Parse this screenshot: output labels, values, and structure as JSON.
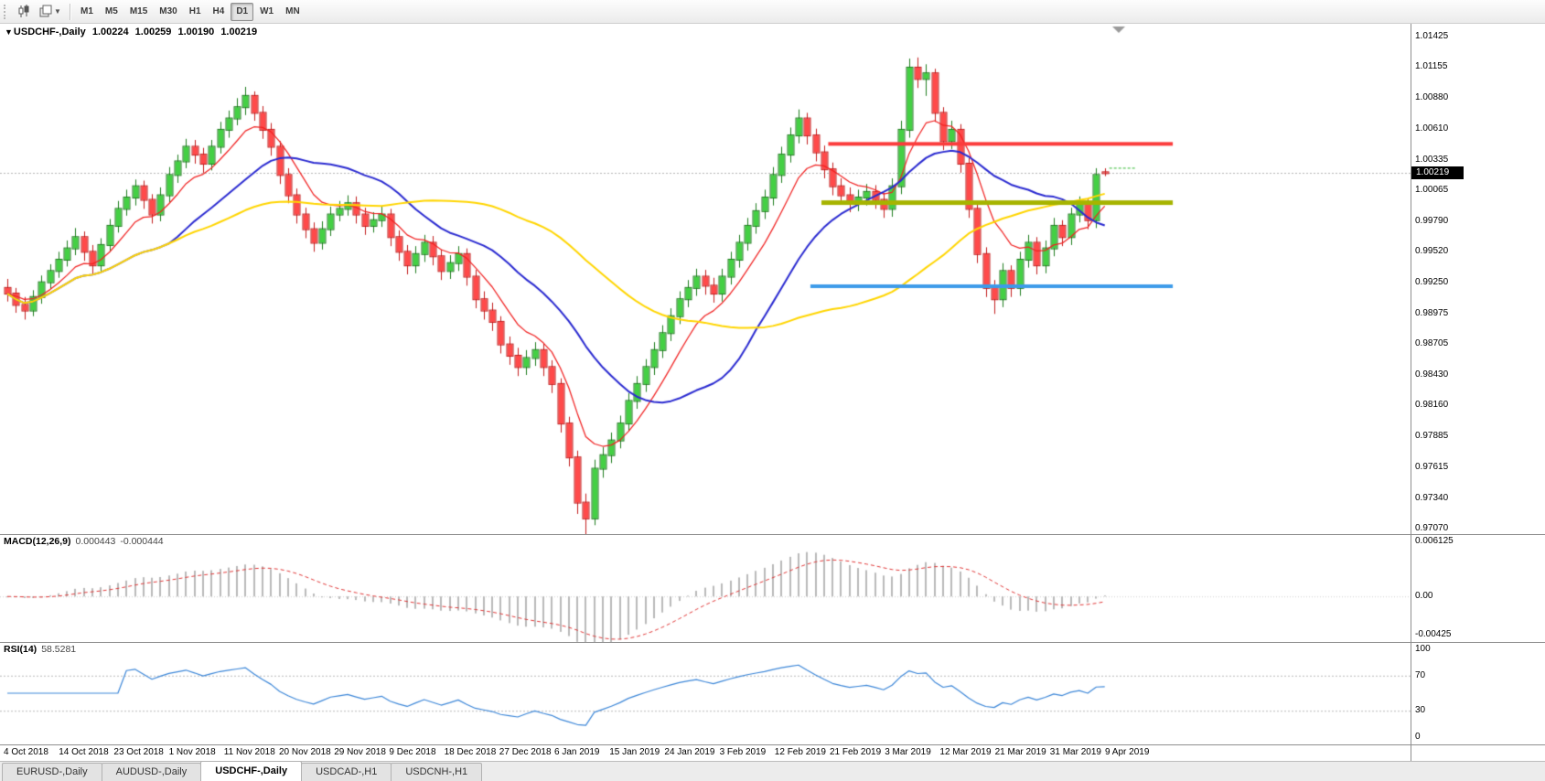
{
  "toolbar": {
    "icons": [
      "candlestick-chart-icon",
      "templates-icon"
    ],
    "timeframes": [
      "M1",
      "M5",
      "M15",
      "M30",
      "H1",
      "H4",
      "D1",
      "W1",
      "MN"
    ],
    "active_timeframe": "D1"
  },
  "chart": {
    "title": {
      "symbol": "USDCHF-,Daily",
      "open": "1.00224",
      "high": "1.00259",
      "low": "1.00190",
      "close": "1.00219"
    },
    "price_axis": {
      "labels": [
        "1.01425",
        "1.01155",
        "1.00880",
        "1.00610",
        "1.00335",
        "1.00065",
        "0.99790",
        "0.99520",
        "0.99250",
        "0.98975",
        "0.98705",
        "0.98430",
        "0.98160",
        "0.97885",
        "0.97615",
        "0.97340",
        "0.97070"
      ],
      "current_price": "1.00219"
    },
    "hlines": [
      {
        "name": "resistance-line",
        "price": 1.00475,
        "color": "#fb3b3b",
        "thickness": 4,
        "from_bar": 96.5,
        "to_bar": 137
      },
      {
        "name": "pivot-line",
        "price": 0.99955,
        "color": "#a6b400",
        "thickness": 5,
        "from_bar": 95.7,
        "to_bar": 137
      },
      {
        "name": "support-line",
        "price": 0.99215,
        "color": "#3d9be9",
        "thickness": 4,
        "from_bar": 94.4,
        "to_bar": 137
      }
    ]
  },
  "macd": {
    "label": "MACD(12,26,9)",
    "value_main": "0.000443",
    "value_signal": "-0.000444",
    "axis": [
      "0.006125",
      "0.00",
      "-0.00425"
    ]
  },
  "rsi": {
    "label": "RSI(14)",
    "value": "58.5281",
    "axis": [
      "100",
      "70",
      "30",
      "0"
    ]
  },
  "tabs": {
    "items": [
      "EURUSD-,Daily",
      "AUDUSD-,Daily",
      "USDCHF-,Daily",
      "USDCAD-,H1",
      "USDCNH-,H1"
    ],
    "active_index": 2
  },
  "theme": {
    "candle_up_fill": "#44d044",
    "candle_up_border": "#1e7d1e",
    "candle_down_fill": "#ff4a4a",
    "candle_down_border": "#c21d1d",
    "ma_fast_color": "#f02222",
    "ma_mid_color": "#2a2ad0",
    "ma_slow_color": "#ffd500",
    "macd_histogram_color": "#b9b9b9",
    "macd_signal_color": "#e03636",
    "rsi_line_color": "#3d87d8",
    "current_price_line_color": "#b8b8b8",
    "ask_line_color": "#2db82d",
    "panel_background": "#ffffff"
  },
  "chart_data": {
    "type": "candlestick",
    "symbol": "USDCHF",
    "timeframe": "Daily",
    "y_range": [
      0.9707,
      1.01425
    ],
    "x_range": [
      "4 Oct 2018",
      "9 Apr 2019"
    ],
    "x_tick_labels": [
      "4 Oct 2018",
      "14 Oct 2018",
      "23 Oct 2018",
      "1 Nov 2018",
      "11 Nov 2018",
      "20 Nov 2018",
      "29 Nov 2018",
      "9 Dec 2018",
      "18 Dec 2018",
      "27 Dec 2018",
      "6 Jan 2019",
      "15 Jan 2019",
      "24 Jan 2019",
      "3 Feb 2019",
      "12 Feb 2019",
      "21 Feb 2019",
      "3 Mar 2019",
      "12 Mar 2019",
      "21 Mar 2019",
      "31 Mar 2019",
      "9 Apr 2019"
    ],
    "ask_marker_price": 1.0026,
    "candles": [
      [
        0.992,
        0.9928,
        0.9908,
        0.9915
      ],
      [
        0.9915,
        0.992,
        0.9898,
        0.9905
      ],
      [
        0.9905,
        0.9912,
        0.9892,
        0.99
      ],
      [
        0.99,
        0.9918,
        0.9895,
        0.9912
      ],
      [
        0.9912,
        0.9931,
        0.9906,
        0.9925
      ],
      [
        0.9925,
        0.9941,
        0.9919,
        0.9935
      ],
      [
        0.9935,
        0.9952,
        0.9929,
        0.9945
      ],
      [
        0.9945,
        0.9962,
        0.9939,
        0.9955
      ],
      [
        0.9955,
        0.9973,
        0.9949,
        0.9965
      ],
      [
        0.9965,
        0.997,
        0.9944,
        0.9952
      ],
      [
        0.9952,
        0.9958,
        0.9932,
        0.994
      ],
      [
        0.994,
        0.9964,
        0.9934,
        0.9958
      ],
      [
        0.9958,
        0.9981,
        0.9952,
        0.9975
      ],
      [
        0.9975,
        0.9997,
        0.9969,
        0.999
      ],
      [
        0.999,
        1.0007,
        0.9984,
        1.0
      ],
      [
        1.0,
        1.0016,
        0.9993,
        1.001
      ],
      [
        1.001,
        1.0015,
        0.999,
        0.9998
      ],
      [
        0.9998,
        1.0003,
        0.9977,
        0.9985
      ],
      [
        0.9985,
        1.0009,
        0.9979,
        1.0002
      ],
      [
        1.0002,
        1.0027,
        0.9996,
        1.002
      ],
      [
        1.002,
        1.0038,
        1.0013,
        1.0032
      ],
      [
        1.0032,
        1.0052,
        1.0026,
        1.0045
      ],
      [
        1.0045,
        1.0051,
        1.003,
        1.0038
      ],
      [
        1.0038,
        1.0044,
        1.0022,
        1.003
      ],
      [
        1.003,
        1.0051,
        1.0024,
        1.0045
      ],
      [
        1.0045,
        1.0067,
        1.0039,
        1.006
      ],
      [
        1.006,
        1.0077,
        1.0053,
        1.007
      ],
      [
        1.007,
        1.0088,
        1.0064,
        1.008
      ],
      [
        1.008,
        1.0098,
        1.0073,
        1.009
      ],
      [
        1.009,
        1.0094,
        1.0068,
        1.0075
      ],
      [
        1.0075,
        1.0081,
        1.0052,
        1.006
      ],
      [
        1.006,
        1.0066,
        1.0037,
        1.0045
      ],
      [
        1.0045,
        1.005,
        1.0012,
        1.002
      ],
      [
        1.002,
        1.0026,
        0.9995,
        1.0002
      ],
      [
        1.0002,
        1.0008,
        0.9977,
        0.9985
      ],
      [
        0.9985,
        0.9991,
        0.9964,
        0.9972
      ],
      [
        0.9972,
        0.9978,
        0.9952,
        0.996
      ],
      [
        0.996,
        0.9979,
        0.9954,
        0.9972
      ],
      [
        0.9972,
        0.9992,
        0.9966,
        0.9985
      ],
      [
        0.9985,
        0.9997,
        0.9979,
        0.999
      ],
      [
        0.999,
        1.0002,
        0.9984,
        0.9995
      ],
      [
        0.9995,
        1.0001,
        0.9977,
        0.9985
      ],
      [
        0.9985,
        0.9991,
        0.9967,
        0.9975
      ],
      [
        0.9975,
        0.9987,
        0.9969,
        0.998
      ],
      [
        0.998,
        0.9992,
        0.9974,
        0.9985
      ],
      [
        0.9985,
        0.999,
        0.9957,
        0.9965
      ],
      [
        0.9965,
        0.9971,
        0.9944,
        0.9952
      ],
      [
        0.9952,
        0.9958,
        0.9932,
        0.994
      ],
      [
        0.994,
        0.9957,
        0.9933,
        0.995
      ],
      [
        0.995,
        0.9967,
        0.9943,
        0.996
      ],
      [
        0.996,
        0.9966,
        0.994,
        0.9948
      ],
      [
        0.9948,
        0.9954,
        0.9927,
        0.9935
      ],
      [
        0.9935,
        0.9949,
        0.9928,
        0.9942
      ],
      [
        0.9942,
        0.9957,
        0.9935,
        0.995
      ],
      [
        0.995,
        0.9955,
        0.9922,
        0.993
      ],
      [
        0.993,
        0.9936,
        0.9902,
        0.991
      ],
      [
        0.991,
        0.9917,
        0.9892,
        0.99
      ],
      [
        0.99,
        0.9907,
        0.9882,
        0.989
      ],
      [
        0.989,
        0.9895,
        0.9862,
        0.987
      ],
      [
        0.987,
        0.9877,
        0.9852,
        0.986
      ],
      [
        0.986,
        0.9867,
        0.9842,
        0.985
      ],
      [
        0.985,
        0.9865,
        0.9843,
        0.9858
      ],
      [
        0.9858,
        0.9872,
        0.9851,
        0.9865
      ],
      [
        0.9865,
        0.9871,
        0.9842,
        0.985
      ],
      [
        0.985,
        0.9856,
        0.9827,
        0.9835
      ],
      [
        0.9835,
        0.984,
        0.9792,
        0.98
      ],
      [
        0.98,
        0.9806,
        0.9762,
        0.977
      ],
      [
        0.977,
        0.9776,
        0.972,
        0.973
      ],
      [
        0.973,
        0.9738,
        0.97,
        0.9716
      ],
      [
        0.9716,
        0.9768,
        0.971,
        0.976
      ],
      [
        0.976,
        0.9779,
        0.9752,
        0.9772
      ],
      [
        0.9772,
        0.9792,
        0.9765,
        0.9785
      ],
      [
        0.9785,
        0.9807,
        0.9778,
        0.98
      ],
      [
        0.98,
        0.9827,
        0.9793,
        0.982
      ],
      [
        0.982,
        0.9842,
        0.9813,
        0.9835
      ],
      [
        0.9835,
        0.9857,
        0.9828,
        0.985
      ],
      [
        0.985,
        0.9872,
        0.9843,
        0.9865
      ],
      [
        0.9865,
        0.9887,
        0.9858,
        0.988
      ],
      [
        0.988,
        0.9902,
        0.9873,
        0.9895
      ],
      [
        0.9895,
        0.9917,
        0.9888,
        0.991
      ],
      [
        0.991,
        0.9927,
        0.9903,
        0.992
      ],
      [
        0.992,
        0.9937,
        0.9913,
        0.993
      ],
      [
        0.993,
        0.9936,
        0.9914,
        0.9922
      ],
      [
        0.9922,
        0.9929,
        0.9907,
        0.9915
      ],
      [
        0.9915,
        0.9937,
        0.9908,
        0.993
      ],
      [
        0.993,
        0.9952,
        0.9923,
        0.9945
      ],
      [
        0.9945,
        0.9967,
        0.9938,
        0.996
      ],
      [
        0.996,
        0.9982,
        0.9953,
        0.9975
      ],
      [
        0.9975,
        0.9995,
        0.9968,
        0.9988
      ],
      [
        0.9988,
        1.0007,
        0.9981,
        1.0
      ],
      [
        1.0,
        1.0027,
        0.9993,
        1.002
      ],
      [
        1.002,
        1.0045,
        1.0013,
        1.0038
      ],
      [
        1.0038,
        1.0062,
        1.0031,
        1.0055
      ],
      [
        1.0055,
        1.0078,
        1.0048,
        1.007
      ],
      [
        1.007,
        1.0075,
        1.0047,
        1.0055
      ],
      [
        1.0055,
        1.0061,
        1.0032,
        1.004
      ],
      [
        1.004,
        1.0046,
        1.0017,
        1.0025
      ],
      [
        1.0025,
        1.0031,
        1.0002,
        1.001
      ],
      [
        1.001,
        1.0017,
        0.9994,
        1.0002
      ],
      [
        1.0002,
        1.0009,
        0.9987,
        0.9995
      ],
      [
        0.9995,
        1.0007,
        0.9988,
        1.0
      ],
      [
        1.0,
        1.0012,
        0.9993,
        1.0005
      ],
      [
        1.0005,
        1.0011,
        0.999,
        0.9998
      ],
      [
        0.9998,
        1.0004,
        0.9982,
        0.999
      ],
      [
        0.999,
        1.0017,
        0.9983,
        1.001
      ],
      [
        1.001,
        1.0068,
        1.0003,
        1.006
      ],
      [
        1.006,
        1.0123,
        1.0053,
        1.0115
      ],
      [
        1.0115,
        1.0124,
        1.0097,
        1.0105
      ],
      [
        1.0105,
        1.0118,
        1.009,
        1.011
      ],
      [
        1.011,
        1.0114,
        1.0067,
        1.0075
      ],
      [
        1.0075,
        1.008,
        1.0042,
        1.005
      ],
      [
        1.005,
        1.0068,
        1.0043,
        1.006
      ],
      [
        1.006,
        1.0065,
        1.0022,
        1.003
      ],
      [
        1.003,
        1.0035,
        0.9982,
        0.999
      ],
      [
        0.999,
        0.9996,
        0.9942,
        0.995
      ],
      [
        0.995,
        0.9956,
        0.9912,
        0.992
      ],
      [
        0.992,
        0.9927,
        0.9897,
        0.991
      ],
      [
        0.991,
        0.9942,
        0.9903,
        0.9935
      ],
      [
        0.9935,
        0.994,
        0.9912,
        0.992
      ],
      [
        0.992,
        0.9952,
        0.9913,
        0.9945
      ],
      [
        0.9945,
        0.9967,
        0.9938,
        0.996
      ],
      [
        0.996,
        0.9965,
        0.9932,
        0.994
      ],
      [
        0.994,
        0.9962,
        0.9933,
        0.9955
      ],
      [
        0.9955,
        0.9982,
        0.9948,
        0.9975
      ],
      [
        0.9975,
        0.998,
        0.9957,
        0.9965
      ],
      [
        0.9965,
        0.9991,
        0.9958,
        0.9985
      ],
      [
        0.9985,
        1.0001,
        0.9978,
        0.9995
      ],
      [
        0.9995,
        1.0,
        0.9972,
        0.998
      ],
      [
        0.998,
        1.0026,
        0.9973,
        1.002
      ],
      [
        1.00224,
        1.00259,
        1.0019,
        1.00219
      ]
    ],
    "moving_averages": [
      {
        "name": "ma-fast",
        "method": "ema",
        "period": 8,
        "color": "#f02222",
        "width": 1.25
      },
      {
        "name": "ma-mid",
        "method": "sma",
        "period": 20,
        "color": "#2a2ad0",
        "width": 2
      },
      {
        "name": "ma-slow",
        "method": "sma",
        "period": 45,
        "color": "#ffd500",
        "width": 2
      }
    ],
    "macd": {
      "fast": 12,
      "slow": 26,
      "signal": 9,
      "current_main": 0.000443,
      "current_signal": -0.000444,
      "y_range": [
        -0.00425,
        0.006125
      ]
    },
    "rsi": {
      "period": 14,
      "current": 58.5281,
      "levels": [
        70,
        30
      ],
      "y_range": [
        0,
        100
      ]
    }
  }
}
